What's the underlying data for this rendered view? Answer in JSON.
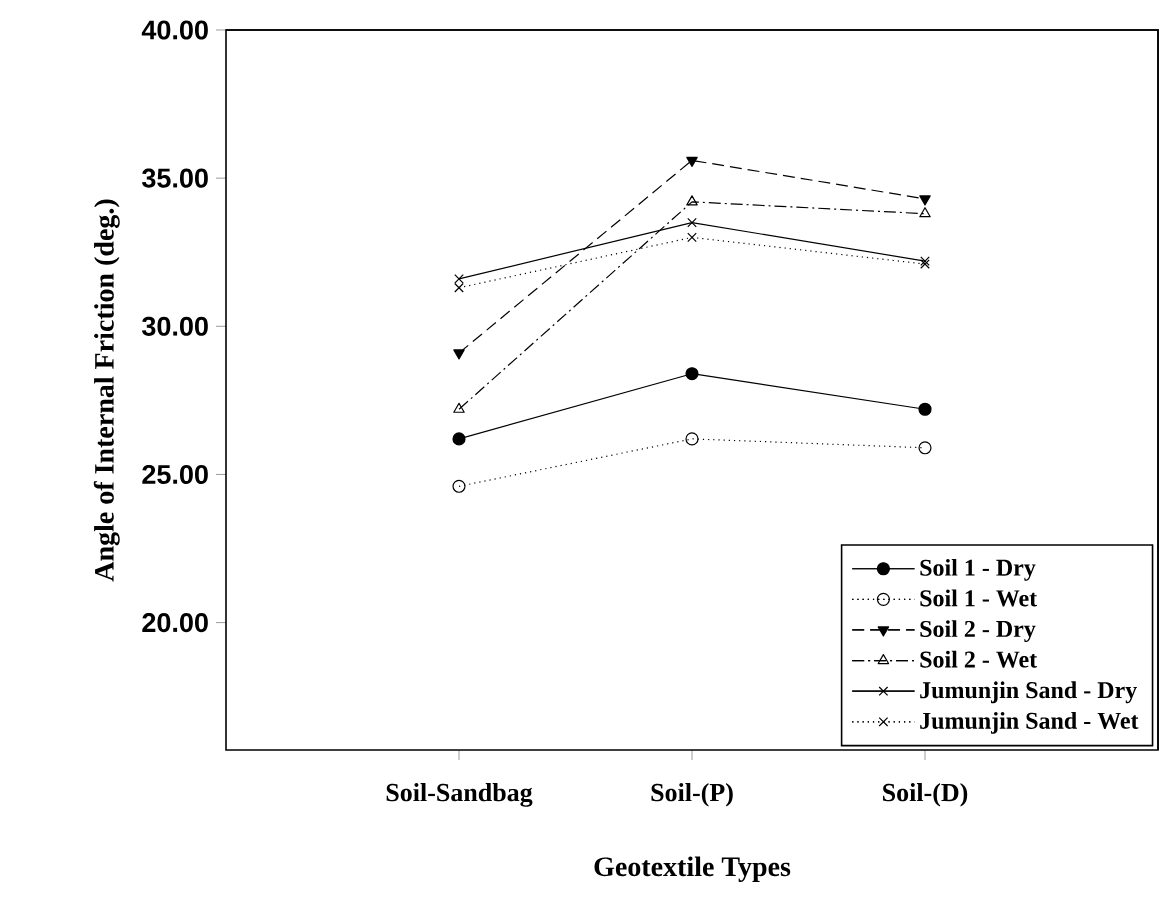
{
  "chart_data": {
    "type": "line",
    "xlabel": "Geotextile Types",
    "ylabel": "Angle of Internal Friction (deg.)",
    "categories": [
      "Soil-Sandbag",
      "Soil-(P)",
      "Soil-(D)"
    ],
    "ylim": [
      15.7,
      40
    ],
    "yticks": [
      {
        "value": 20,
        "label": "20.00"
      },
      {
        "value": 25,
        "label": "25.00"
      },
      {
        "value": 30,
        "label": "30.00"
      },
      {
        "value": 35,
        "label": "35.00"
      },
      {
        "value": 40,
        "label": "40.00"
      }
    ],
    "legend": "bottom right",
    "series": [
      {
        "name": "Soil 1 - Dry",
        "color": "#000000",
        "marker": "circle",
        "line_style": "solid",
        "values": [
          26.2,
          28.4,
          27.2
        ]
      },
      {
        "name": "Soil 1 - Wet",
        "color": "#000000",
        "marker": "circle",
        "line_style": "dotted",
        "values": [
          24.6,
          26.2,
          25.9
        ]
      },
      {
        "name": "Soil 2 - Dry",
        "color": "#000000",
        "marker": "triangle",
        "line_style": "dashed",
        "values": [
          29.1,
          35.6,
          34.3
        ]
      },
      {
        "name": "Soil 2 - Wet",
        "color": "#000000",
        "marker": "triangle",
        "line_style": "dashdot",
        "values": [
          27.2,
          34.2,
          33.8
        ]
      },
      {
        "name": "Jumunjin Sand - Dry",
        "color": "#000000",
        "marker": "cross",
        "line_style": "solid",
        "values": [
          31.6,
          33.5,
          32.2
        ]
      },
      {
        "name": "Jumunjin Sand - Wet",
        "color": "#000000",
        "marker": "cross",
        "line_style": "dotted",
        "values": [
          31.3,
          33.0,
          32.1
        ]
      }
    ]
  }
}
